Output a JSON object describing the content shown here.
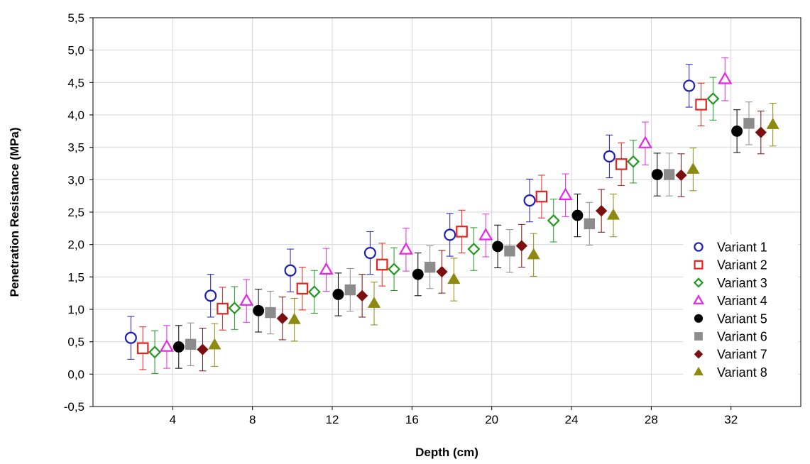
{
  "chart_data": {
    "type": "scatter",
    "title": "",
    "xlabel": "Depth (cm)",
    "ylabel": "Penetration Resistance (MPa)",
    "xlim": [
      0,
      35.5
    ],
    "ylim": [
      -0.5,
      5.5
    ],
    "xticks": [
      4,
      8,
      12,
      16,
      20,
      24,
      28,
      32
    ],
    "yticks": [
      -0.5,
      0,
      0.5,
      1,
      1.5,
      2,
      2.5,
      3,
      3.5,
      4,
      4.5,
      5,
      5.5
    ],
    "xtick_labels": [
      "4",
      "8",
      "12",
      "16",
      "20",
      "24",
      "28",
      "32"
    ],
    "ytick_labels": [
      "-0,5",
      "0,0",
      "0,5",
      "1,0",
      "1,5",
      "2,0",
      "2,5",
      "3,0",
      "3,5",
      "4,0",
      "4,5",
      "5,0",
      "5,5"
    ],
    "grid": true,
    "legend_position": "bottom-right",
    "error_bars": "±0.33 MPa (approx.)",
    "series": [
      {
        "name": "Variant 1",
        "color": "#1f1fb4",
        "marker": "circle-open",
        "x": [
          1.9,
          5.9,
          9.9,
          13.9,
          17.9,
          21.9,
          25.9,
          29.9
        ],
        "y": [
          0.56,
          1.21,
          1.6,
          1.87,
          2.15,
          2.68,
          3.36,
          4.45
        ]
      },
      {
        "name": "Variant 2",
        "color": "#e8231e",
        "marker": "square-open",
        "x": [
          2.5,
          6.5,
          10.5,
          14.5,
          18.5,
          22.5,
          26.5,
          30.5
        ],
        "y": [
          0.4,
          1.01,
          1.32,
          1.69,
          2.2,
          2.74,
          3.24,
          4.16
        ]
      },
      {
        "name": "Variant 3",
        "color": "#1f9a1f",
        "marker": "diamond-open",
        "x": [
          3.1,
          7.1,
          11.1,
          15.1,
          19.1,
          23.1,
          27.1,
          31.1
        ],
        "y": [
          0.34,
          1.02,
          1.27,
          1.62,
          1.93,
          2.37,
          3.28,
          4.25
        ]
      },
      {
        "name": "Variant 4",
        "color": "#e628e6",
        "marker": "triangle-open",
        "x": [
          3.7,
          7.7,
          11.7,
          15.7,
          19.7,
          23.7,
          27.7,
          31.7
        ],
        "y": [
          0.42,
          1.13,
          1.61,
          1.92,
          2.14,
          2.76,
          3.56,
          4.55
        ]
      },
      {
        "name": "Variant 5",
        "color": "#000000",
        "marker": "circle-filled",
        "x": [
          4.3,
          8.3,
          12.3,
          16.3,
          20.3,
          24.3,
          28.3,
          32.3
        ],
        "y": [
          0.42,
          0.98,
          1.23,
          1.54,
          1.97,
          2.45,
          3.08,
          3.75
        ]
      },
      {
        "name": "Variant 6",
        "color": "#8c8c8c",
        "marker": "square-filled",
        "x": [
          4.9,
          8.9,
          12.9,
          16.9,
          20.9,
          24.9,
          28.9,
          32.9
        ],
        "y": [
          0.46,
          0.95,
          1.3,
          1.65,
          1.9,
          2.32,
          3.08,
          3.87
        ]
      },
      {
        "name": "Variant 7",
        "color": "#7a1010",
        "marker": "diamond-filled",
        "x": [
          5.5,
          9.5,
          13.5,
          17.5,
          21.5,
          25.5,
          29.5,
          33.5
        ],
        "y": [
          0.38,
          0.86,
          1.21,
          1.58,
          1.98,
          2.52,
          3.07,
          3.73
        ]
      },
      {
        "name": "Variant 8",
        "color": "#8c8a10",
        "marker": "triangle-filled",
        "x": [
          6.1,
          10.1,
          14.1,
          18.1,
          22.1,
          26.1,
          30.1,
          34.1
        ],
        "y": [
          0.45,
          0.84,
          1.09,
          1.46,
          1.84,
          2.45,
          3.16,
          3.85
        ]
      }
    ]
  }
}
